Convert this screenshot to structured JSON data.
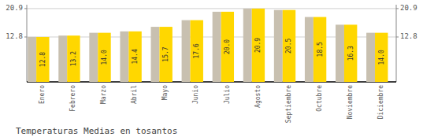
{
  "chart_data": {
    "type": "bar",
    "title": "Temperaturas Medias en tosantos",
    "categories": [
      "Enero",
      "Febrero",
      "Marzo",
      "Abril",
      "Mayo",
      "Junio",
      "Julio",
      "Agosto",
      "Septiembre",
      "Octubre",
      "Noviembre",
      "Diciembre"
    ],
    "values": [
      12.8,
      13.2,
      14.0,
      14.4,
      15.7,
      17.6,
      20.0,
      20.9,
      20.5,
      18.5,
      16.3,
      14.0
    ],
    "value_labels": [
      "12.8",
      "13.2",
      "14.0",
      "14.4",
      "15.7",
      "17.6",
      "20.0",
      "20.9",
      "20.5",
      "18.5",
      "16.3",
      "14.0"
    ],
    "color": "#FFD700",
    "ylim": [
      0.0,
      22.0
    ],
    "yticks": [
      12.8,
      20.9
    ],
    "grid": true,
    "data_labels": true
  }
}
